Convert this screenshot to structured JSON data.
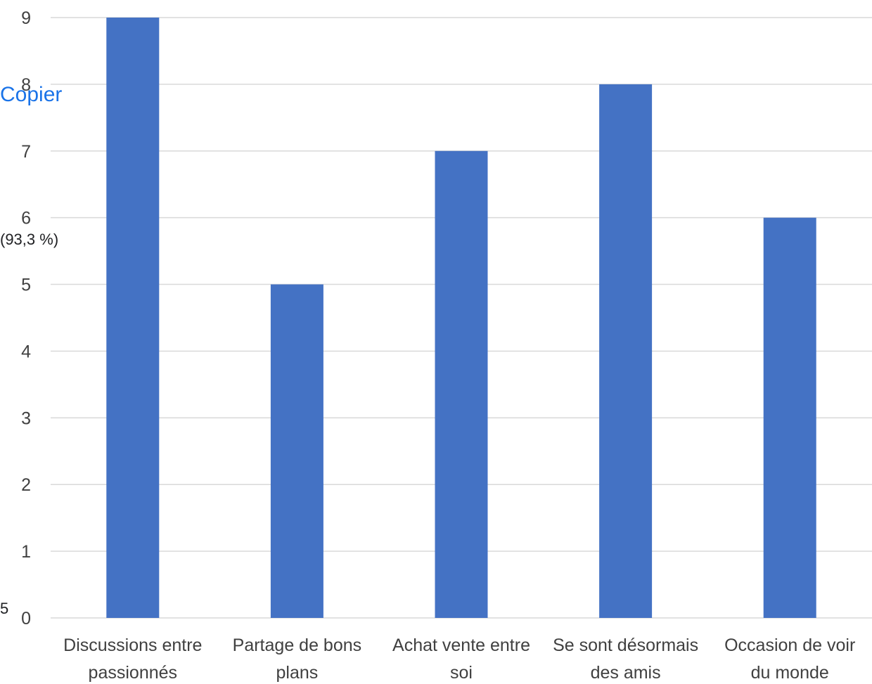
{
  "overlay": {
    "copy_label": "Copier",
    "percent_text": "(93,3 %)",
    "partial_value": "5"
  },
  "chart_data": {
    "type": "bar",
    "title": "",
    "xlabel": "",
    "ylabel": "",
    "categories": [
      [
        "Discussions entre",
        "passionnés"
      ],
      [
        "Partage de bons",
        "plans"
      ],
      [
        "Achat vente entre",
        "soi"
      ],
      [
        "Se sont désormais",
        "des amis"
      ],
      [
        "Occasion de voir",
        "du monde"
      ]
    ],
    "values": [
      9,
      5,
      7,
      8,
      6
    ],
    "ylim": [
      0,
      9
    ],
    "yticks": [
      0,
      1,
      2,
      3,
      4,
      5,
      6,
      7,
      8,
      9
    ],
    "grid": true,
    "legend": "none",
    "colors": {
      "bar": "#4472c4",
      "grid": "#d9d9d9",
      "text": "#404040"
    }
  }
}
